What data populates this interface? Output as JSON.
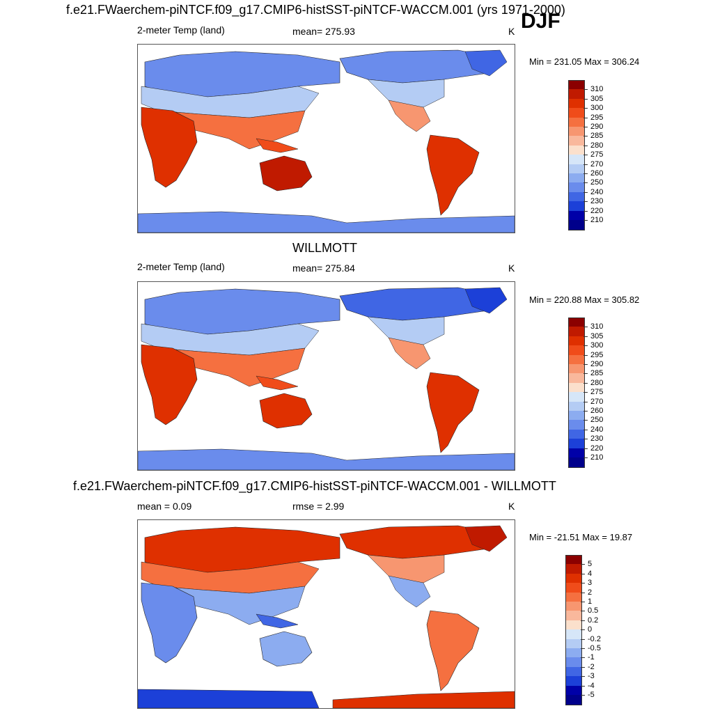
{
  "header": {
    "title": "f.e21.FWaerchem-piNTCF.f09_g17.CMIP6-histSST-piNTCF-WACCM.001 (yrs 1971-2000)",
    "season": "DJF"
  },
  "panel1": {
    "left": "2-meter Temp (land)",
    "center": "mean= 275.93",
    "units": "K",
    "minmax": "Min = 231.05 Max = 306.24"
  },
  "panel2": {
    "title": "WILLMOTT",
    "left": "2-meter Temp (land)",
    "center": "mean= 275.84",
    "units": "K",
    "minmax": "Min = 220.88 Max = 305.82"
  },
  "panel3": {
    "title": "f.e21.FWaerchem-piNTCF.f09_g17.CMIP6-histSST-piNTCF-WACCM.001 - WILLMOTT",
    "left": "mean =   0.09",
    "center": "rmse =   2.99",
    "units": "K",
    "minmax": "Min = -21.51 Max =  19.87"
  },
  "colorbar_abs": {
    "labels": [
      "310",
      "305",
      "300",
      "295",
      "290",
      "285",
      "280",
      "275",
      "270",
      "260",
      "250",
      "240",
      "230",
      "220",
      "210"
    ],
    "colors": [
      "#8b0000",
      "#c01a00",
      "#df3000",
      "#f04c1a",
      "#f57040",
      "#f79670",
      "#f9b89c",
      "#fbe0cc",
      "#d6e6f8",
      "#b4ccf4",
      "#8cacf0",
      "#6a8cec",
      "#4066e4",
      "#1c40d8",
      "#0000a8",
      "#00008b"
    ]
  },
  "colorbar_diff": {
    "labels": [
      "5",
      "4",
      "3",
      "2",
      "1",
      "0.5",
      "0.2",
      "0",
      "-0.2",
      "-0.5",
      "-1",
      "-2",
      "-3",
      "-4",
      "-5"
    ],
    "colors": [
      "#8b0000",
      "#c01a00",
      "#df3000",
      "#f04c1a",
      "#f57040",
      "#f79670",
      "#f9b89c",
      "#fbe0cc",
      "#d6e6f8",
      "#b4ccf4",
      "#8cacf0",
      "#6a8cec",
      "#4066e4",
      "#1c40d8",
      "#0000a8",
      "#00008b"
    ]
  }
}
